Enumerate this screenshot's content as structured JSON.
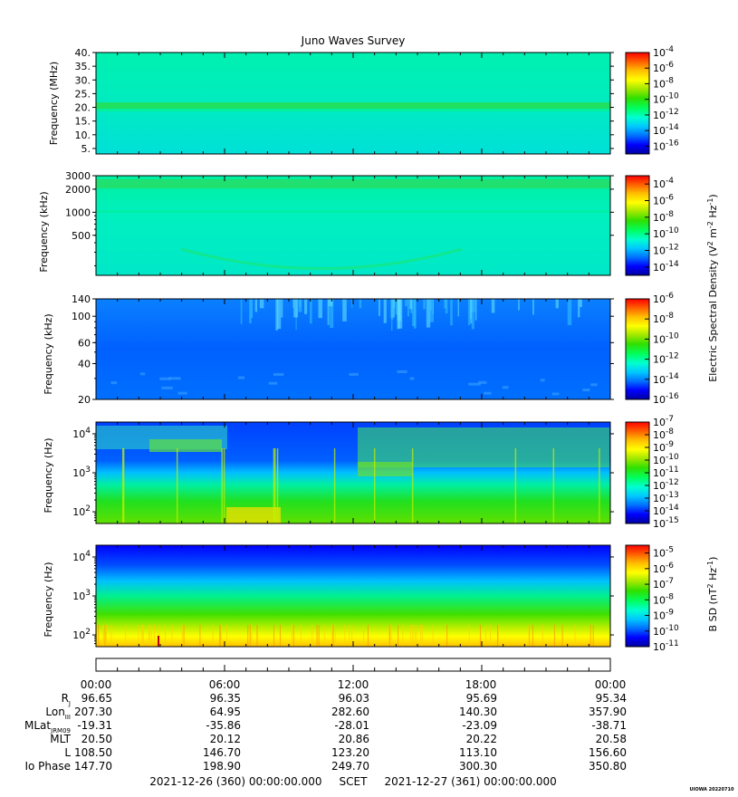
{
  "title": "Juno Waves Survey",
  "colors": {
    "colormap": [
      "#0000a0",
      "#0000ff",
      "#0070ff",
      "#00c8ff",
      "#00ffd0",
      "#00ff60",
      "#30e000",
      "#a0e800",
      "#ffff00",
      "#ffc000",
      "#ff6000",
      "#ff0000"
    ]
  },
  "chart_data": [
    {
      "type": "heatmap",
      "panel": "waves-high-frequency",
      "ylabel": "Frequency (MHz)",
      "y_tick_labels": [
        "5.",
        "10.",
        "15.",
        "20.",
        "25.",
        "30.",
        "35.",
        "40."
      ],
      "y_tick_values": [
        5,
        10,
        15,
        20,
        25,
        30,
        35,
        40
      ],
      "ylim": [
        3,
        40
      ],
      "colorbar_ticks": [
        {
          "base": "10",
          "exp": "-4"
        },
        {
          "base": "10",
          "exp": "-6"
        },
        {
          "base": "10",
          "exp": "-8"
        },
        {
          "base": "10",
          "exp": "-10"
        },
        {
          "base": "10",
          "exp": "-12"
        },
        {
          "base": "10",
          "exp": "-14"
        },
        {
          "base": "10",
          "exp": "-16"
        }
      ],
      "colorbar_range_exp": [
        -17,
        -4
      ]
    },
    {
      "type": "heatmap",
      "panel": "waves-mid-frequency",
      "ylabel": "Frequency (kHz)",
      "y_tick_labels": [
        "500",
        "1000",
        "2000",
        "3000"
      ],
      "y_tick_values": [
        500,
        1000,
        2000,
        3000
      ],
      "ylim": [
        150,
        3000
      ],
      "y_scale": "log",
      "colorbar_ticks": [
        {
          "base": "10",
          "exp": "-4"
        },
        {
          "base": "10",
          "exp": "-6"
        },
        {
          "base": "10",
          "exp": "-8"
        },
        {
          "base": "10",
          "exp": "-10"
        },
        {
          "base": "10",
          "exp": "-12"
        },
        {
          "base": "10",
          "exp": "-14"
        }
      ],
      "colorbar_range_exp": [
        -15,
        -3
      ]
    },
    {
      "type": "heatmap",
      "panel": "waves-low-frequency",
      "ylabel": "Frequency (kHz)",
      "y_tick_labels": [
        "20",
        "40",
        "60",
        "100",
        "140"
      ],
      "y_tick_values": [
        20,
        40,
        60,
        100,
        140
      ],
      "ylim": [
        20,
        140
      ],
      "y_scale": "log",
      "colorbar_ticks": [
        {
          "base": "10",
          "exp": "-6"
        },
        {
          "base": "10",
          "exp": "-8"
        },
        {
          "base": "10",
          "exp": "-10"
        },
        {
          "base": "10",
          "exp": "-12"
        },
        {
          "base": "10",
          "exp": "-14"
        },
        {
          "base": "10",
          "exp": "-16"
        }
      ],
      "colorbar_range_exp": [
        -16,
        -6
      ]
    },
    {
      "type": "heatmap",
      "panel": "waves-electric-hz",
      "ylabel": "Frequency (Hz)",
      "y_tick_labels": [
        {
          "base": "10",
          "exp": "2"
        },
        {
          "base": "10",
          "exp": "3"
        },
        {
          "base": "10",
          "exp": "4"
        }
      ],
      "y_tick_values": [
        100,
        1000,
        10000
      ],
      "ylim": [
        50,
        20000
      ],
      "y_scale": "log",
      "colorbar_ticks": [
        {
          "base": "10",
          "exp": "-7"
        },
        {
          "base": "10",
          "exp": "-8"
        },
        {
          "base": "10",
          "exp": "-9"
        },
        {
          "base": "10",
          "exp": "-10"
        },
        {
          "base": "10",
          "exp": "-11"
        },
        {
          "base": "10",
          "exp": "-12"
        },
        {
          "base": "10",
          "exp": "-13"
        },
        {
          "base": "10",
          "exp": "-14"
        },
        {
          "base": "10",
          "exp": "-15"
        }
      ],
      "colorbar_range_exp": [
        -15,
        -7
      ]
    },
    {
      "type": "heatmap",
      "panel": "waves-magnetic",
      "ylabel": "Frequency (Hz)",
      "y_tick_labels": [
        {
          "base": "10",
          "exp": "2"
        },
        {
          "base": "10",
          "exp": "3"
        },
        {
          "base": "10",
          "exp": "4"
        }
      ],
      "y_tick_values": [
        100,
        1000,
        10000
      ],
      "ylim": [
        50,
        20000
      ],
      "y_scale": "log",
      "colorbar_ticks": [
        {
          "base": "10",
          "exp": "-5"
        },
        {
          "base": "10",
          "exp": "-6"
        },
        {
          "base": "10",
          "exp": "-7"
        },
        {
          "base": "10",
          "exp": "-8"
        },
        {
          "base": "10",
          "exp": "-9"
        },
        {
          "base": "10",
          "exp": "-10"
        },
        {
          "base": "10",
          "exp": "-11"
        }
      ],
      "colorbar_range_exp": [
        -11,
        -4.5
      ]
    }
  ],
  "colorbar_labels": {
    "electric": {
      "prefix": "Electric Spectral Density (V",
      "sup1": "2",
      "mid": " m",
      "sup2": "-2",
      "mid2": " Hz",
      "sup3": "-1",
      "suffix": ")"
    },
    "magnetic": {
      "prefix": "B SD (nT",
      "sup1": "2",
      "mid": " Hz",
      "sup3": "-1",
      "suffix": ")"
    }
  },
  "ephemeris": {
    "time_labels": [
      "00:00",
      "06:00",
      "12:00",
      "18:00",
      "00:00"
    ],
    "rows": [
      {
        "label": "R",
        "sub": "J",
        "values": [
          "96.65",
          "96.35",
          "96.03",
          "95.69",
          "95.34"
        ]
      },
      {
        "label": "Lon",
        "sub": "III",
        "values": [
          "207.30",
          "64.95",
          "282.60",
          "140.30",
          "357.90"
        ]
      },
      {
        "label": "MLat",
        "sub": "JRM09",
        "values": [
          "-19.31",
          "-35.86",
          "-28.01",
          "-23.09",
          "-38.71"
        ]
      },
      {
        "label": "MLT",
        "sub": "",
        "values": [
          "20.50",
          "20.12",
          "20.86",
          "20.22",
          "20.58"
        ]
      },
      {
        "label": "L",
        "sub": "",
        "values": [
          "108.50",
          "146.70",
          "123.20",
          "113.10",
          "156.60"
        ]
      },
      {
        "label": "Io Phase",
        "sub": "",
        "values": [
          "147.70",
          "198.90",
          "249.70",
          "300.30",
          "350.80"
        ]
      }
    ]
  },
  "footer": {
    "range_text": "2021-12-26 (360) 00:00:00.000     SCET     2021-12-27 (361) 00:00:00.000",
    "stamp": "UIOWA 20220710"
  }
}
